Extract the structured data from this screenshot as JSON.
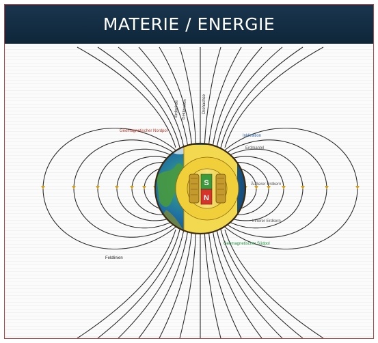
{
  "header": {
    "title": "MATERIE / ENERGIE"
  },
  "labels": {
    "north_pole": "Geomagnetischer Nordpol",
    "south_pole": "Geomagnetischer Südpol",
    "inclination": "Inklination",
    "crust": "Erdmantel",
    "outer_core": "Äußerer Erdkern",
    "inner_core": "Innerer Erdkern",
    "field_lines": "Feldlinien",
    "vertical_1": "Erdachse",
    "vertical_2": "Deklination",
    "vertical_3": "Drehachse",
    "magnet_s": "S",
    "magnet_n": "N"
  },
  "colors": {
    "banner": "#15304a",
    "frame_border": "#b2453f",
    "north_label": "#c23a2b",
    "south_label": "#1f8f3c",
    "inclination_label": "#2a5fa8",
    "core_yellow": "#f0d64a",
    "core_outline": "#3a2a10",
    "magnet_green": "#3d9a3c",
    "magnet_red": "#d6332a",
    "arrow": "#d4a020"
  }
}
